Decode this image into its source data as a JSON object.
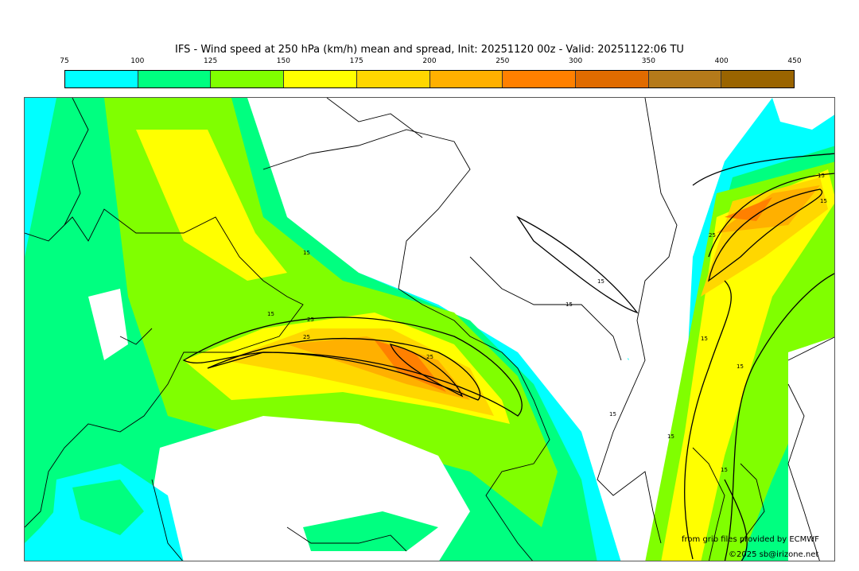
{
  "title": "IFS - Wind speed at 250 hPa (km/h) mean and spread, Init: 20251120 00z - Valid: 20251122:06 TU",
  "colorbar": {
    "ticks": [
      "75",
      "100",
      "125",
      "150",
      "175",
      "200",
      "250",
      "300",
      "350",
      "400",
      "450"
    ],
    "colors": [
      "#00ffff",
      "#00ff80",
      "#80ff00",
      "#ffff00",
      "#ffd700",
      "#ffb000",
      "#ff8000",
      "#e06b00",
      "#b57a1a",
      "#9a6400"
    ]
  },
  "contour_labels": [
    "15",
    "25",
    "15",
    "15",
    "25",
    "25",
    "15",
    "15",
    "25",
    "15",
    "15",
    "15",
    "15",
    "15",
    "15"
  ],
  "credits": {
    "source": "from grib files provided by ECMWF",
    "copyright": "©2025 sb@irizone.net"
  }
}
